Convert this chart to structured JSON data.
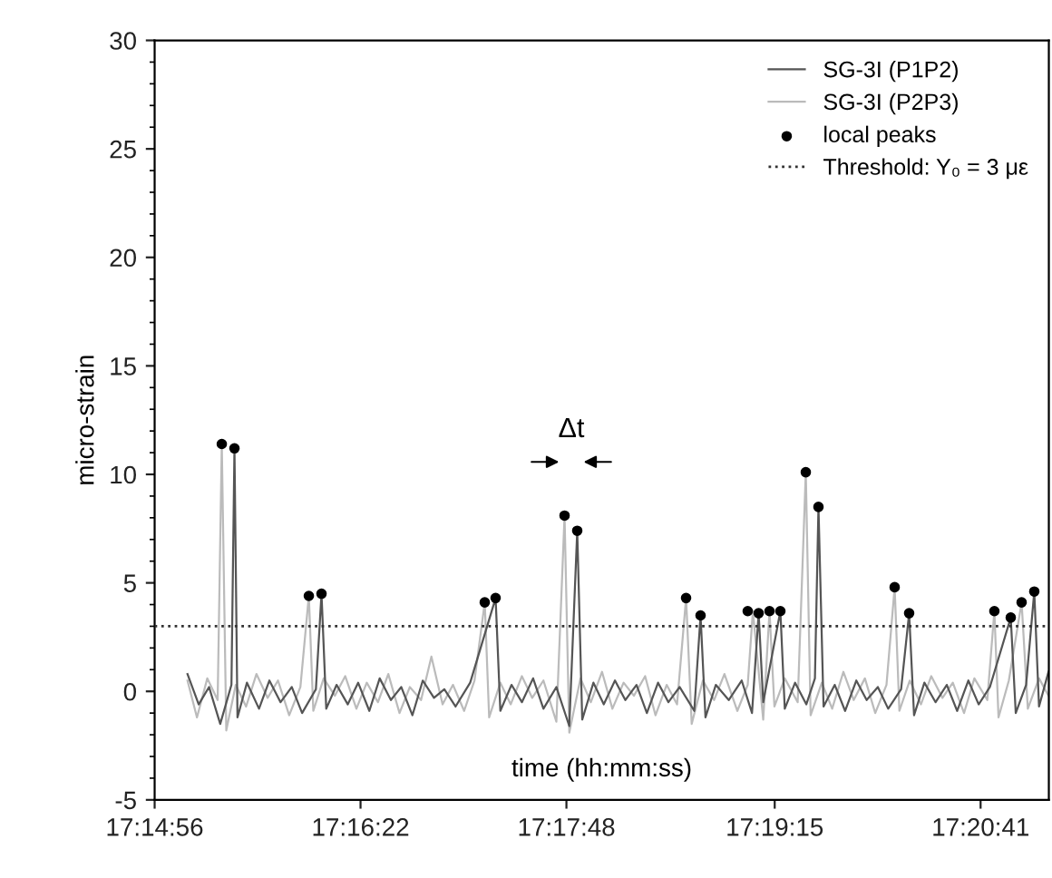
{
  "chart_data": {
    "type": "line",
    "xlabel": "time (hh:mm:ss)",
    "ylabel": "micro-strain",
    "xlim": [
      17.248889,
      17.35264
    ],
    "ylim": [
      -5,
      30
    ],
    "xticks": [
      {
        "value": 17.248889,
        "label": "17:14:56"
      },
      {
        "value": 17.272778,
        "label": "17:16:22"
      },
      {
        "value": 17.296667,
        "label": "17:17:48"
      },
      {
        "value": 17.320833,
        "label": "17:19:15"
      },
      {
        "value": 17.344722,
        "label": "17:20:41"
      }
    ],
    "yticks": [
      -5,
      0,
      5,
      10,
      15,
      20,
      25,
      30
    ],
    "grid": false,
    "legend": "top right",
    "series": [
      {
        "name": "SG-3I (P1P2)",
        "color": "#555555",
        "marker": "none",
        "x": [
          17.2527,
          17.254,
          17.2552,
          17.2565,
          17.2578,
          17.25815,
          17.2585,
          17.2596,
          17.261,
          17.2622,
          17.2635,
          17.2648,
          17.266,
          17.2676,
          17.26825,
          17.2688,
          17.27,
          17.2713,
          17.2725,
          17.2738,
          17.275,
          17.2763,
          17.2775,
          17.2788,
          17.28,
          17.2813,
          17.2825,
          17.2838,
          17.2855,
          17.28845,
          17.289,
          17.2903,
          17.2915,
          17.2928,
          17.294,
          17.2955,
          17.297,
          17.29792,
          17.2985,
          17.2998,
          17.301,
          17.3023,
          17.3035,
          17.3048,
          17.306,
          17.3073,
          17.3085,
          17.3098,
          17.3115,
          17.31223,
          17.3128,
          17.314,
          17.3155,
          17.317,
          17.3182,
          17.31897,
          17.3195,
          17.32149,
          17.322,
          17.3232,
          17.3245,
          17.3255,
          17.32591,
          17.3265,
          17.3278,
          17.329,
          17.3303,
          17.3315,
          17.3328,
          17.334,
          17.3355,
          17.33643,
          17.337,
          17.3382,
          17.3395,
          17.3408,
          17.342,
          17.3433,
          17.3445,
          17.3458,
          17.34822,
          17.3488,
          17.35,
          17.35095,
          17.3515,
          17.3526
        ],
        "values": [
          0.8,
          -0.6,
          0.2,
          -1.5,
          0.3,
          11.2,
          -1.2,
          0.4,
          -0.8,
          0.5,
          -0.5,
          0.2,
          -1.0,
          0.1,
          4.5,
          -0.8,
          0.3,
          -0.6,
          0.4,
          -0.9,
          0.6,
          -0.4,
          0.2,
          -1.1,
          0.5,
          -0.3,
          0.1,
          -0.7,
          0.4,
          4.3,
          -0.9,
          0.3,
          -0.5,
          0.6,
          -0.8,
          0.2,
          -1.6,
          7.4,
          -1.3,
          0.4,
          -0.6,
          0.5,
          -0.4,
          0.3,
          -1.0,
          0.4,
          -0.5,
          0.2,
          -0.9,
          3.5,
          -1.2,
          0.3,
          -0.4,
          0.5,
          -1.0,
          3.6,
          -0.5,
          3.7,
          -0.8,
          0.4,
          -0.6,
          0.6,
          8.5,
          -0.7,
          0.3,
          -0.9,
          0.5,
          -0.4,
          0.2,
          -0.8,
          0.1,
          3.6,
          -1.1,
          0.4,
          -0.5,
          0.3,
          -0.9,
          0.5,
          -0.6,
          0.2,
          3.4,
          -1.0,
          0.3,
          4.6,
          -0.7,
          0.9
        ]
      },
      {
        "name": "SG-3I (P2P3)",
        "color": "#bbbbbb",
        "marker": "none",
        "x": [
          17.2527,
          17.2538,
          17.255,
          17.2562,
          17.25668,
          17.2572,
          17.2583,
          17.2595,
          17.2607,
          17.262,
          17.2632,
          17.2645,
          17.2658,
          17.26678,
          17.2673,
          17.2685,
          17.2698,
          17.271,
          17.2723,
          17.2735,
          17.2748,
          17.276,
          17.2773,
          17.2785,
          17.2798,
          17.281,
          17.2823,
          17.2835,
          17.2848,
          17.286,
          17.28719,
          17.2877,
          17.289,
          17.2902,
          17.2915,
          17.2927,
          17.294,
          17.2955,
          17.29645,
          17.297,
          17.2983,
          17.2995,
          17.3008,
          17.302,
          17.3033,
          17.3045,
          17.3058,
          17.307,
          17.3083,
          17.3095,
          17.31055,
          17.3112,
          17.3125,
          17.3138,
          17.315,
          17.3165,
          17.3177,
          17.3183,
          17.3195,
          17.32023,
          17.3208,
          17.322,
          17.3235,
          17.32444,
          17.325,
          17.3263,
          17.3275,
          17.3288,
          17.33,
          17.3313,
          17.3325,
          17.3338,
          17.33475,
          17.3353,
          17.3365,
          17.3378,
          17.339,
          17.3403,
          17.3415,
          17.3428,
          17.344,
          17.3455,
          17.34632,
          17.3468,
          17.348,
          17.34948,
          17.3502,
          17.3515,
          17.3526
        ],
        "values": [
          0.5,
          -1.2,
          0.6,
          -0.4,
          11.4,
          -1.8,
          0.3,
          -0.7,
          0.8,
          -0.3,
          0.5,
          -1.1,
          0.2,
          4.4,
          -0.9,
          0.6,
          -0.2,
          0.7,
          -0.8,
          0.4,
          -0.5,
          0.8,
          -1.0,
          0.2,
          -0.4,
          1.6,
          -0.6,
          0.3,
          -0.9,
          0.5,
          4.1,
          -1.2,
          0.4,
          -0.6,
          0.7,
          -0.3,
          0.5,
          -1.4,
          8.1,
          -1.9,
          0.6,
          -0.5,
          0.9,
          -0.8,
          0.4,
          -0.2,
          0.7,
          -1.1,
          0.3,
          -0.6,
          4.3,
          -1.5,
          0.5,
          -0.4,
          0.8,
          -0.9,
          0.3,
          3.7,
          -1.3,
          3.7,
          -0.7,
          0.6,
          -0.5,
          10.1,
          -1.1,
          0.4,
          -0.8,
          0.9,
          -0.4,
          0.6,
          -1.0,
          0.3,
          4.8,
          -0.9,
          0.5,
          -0.6,
          0.7,
          -0.3,
          0.4,
          -1.0,
          0.6,
          -0.4,
          3.7,
          -1.2,
          0.5,
          4.1,
          -0.8,
          0.6,
          -0.2
        ]
      },
      {
        "name": "local peaks",
        "type": "scatter",
        "color": "#000000",
        "marker": "circle",
        "x": [
          17.25668,
          17.25815,
          17.26678,
          17.26825,
          17.28719,
          17.28845,
          17.29645,
          17.29792,
          17.31055,
          17.31223,
          17.3177,
          17.31897,
          17.32023,
          17.32149,
          17.32444,
          17.32591,
          17.33475,
          17.33643,
          17.34632,
          17.34822,
          17.34948,
          17.35095
        ],
        "values": [
          11.4,
          11.2,
          4.4,
          4.5,
          4.1,
          4.3,
          8.1,
          7.4,
          4.3,
          3.5,
          3.7,
          3.6,
          3.7,
          3.7,
          10.1,
          8.5,
          4.8,
          3.6,
          3.7,
          3.4,
          4.1,
          4.6
        ]
      }
    ],
    "ref_lines": [
      {
        "axis": "y",
        "value": 3,
        "label": "Threshold: Y₀ = 3 με",
        "color": "#333333",
        "line_style": "dotted"
      }
    ],
    "annotations": [
      "Δt"
    ]
  }
}
